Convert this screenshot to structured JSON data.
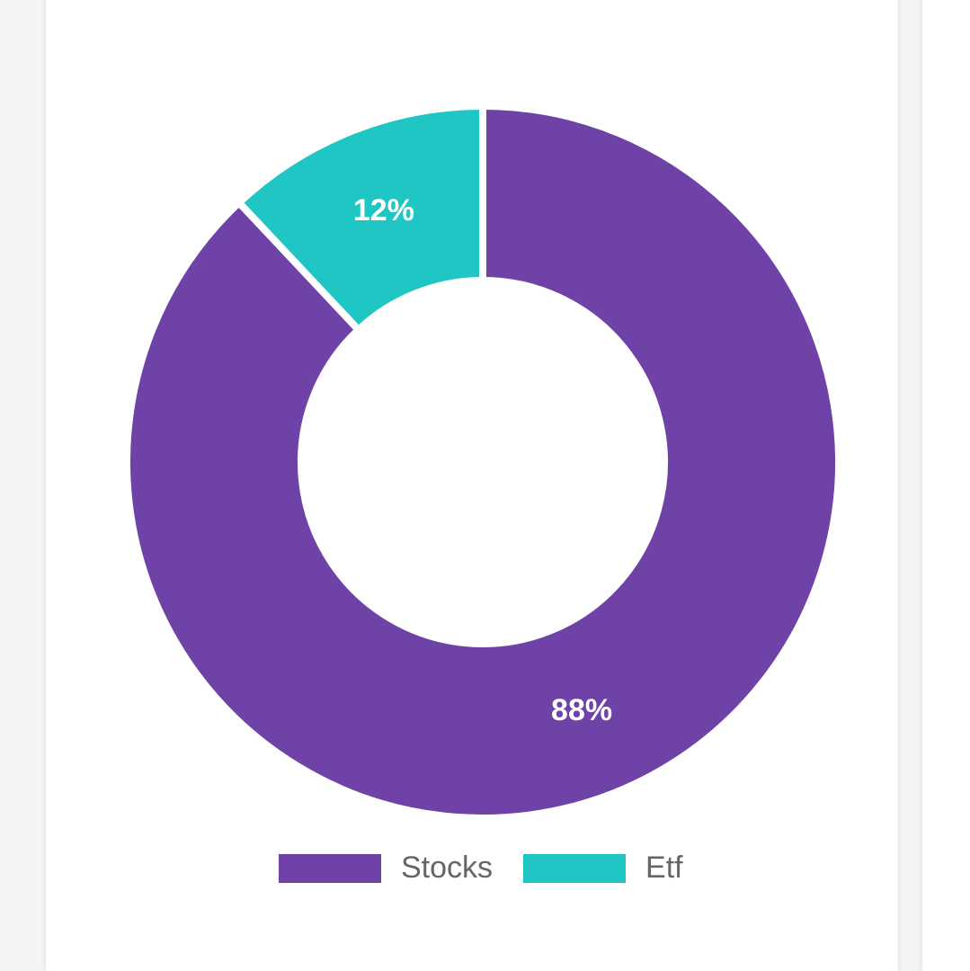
{
  "chart_data": {
    "type": "pie",
    "variant": "doughnut",
    "categories": [
      "Stocks",
      "Etf"
    ],
    "values": [
      88,
      12
    ],
    "data_labels": [
      "88%",
      "12%"
    ],
    "colors": [
      "#6f42a8",
      "#1fc6c3"
    ],
    "legend_position": "bottom"
  }
}
